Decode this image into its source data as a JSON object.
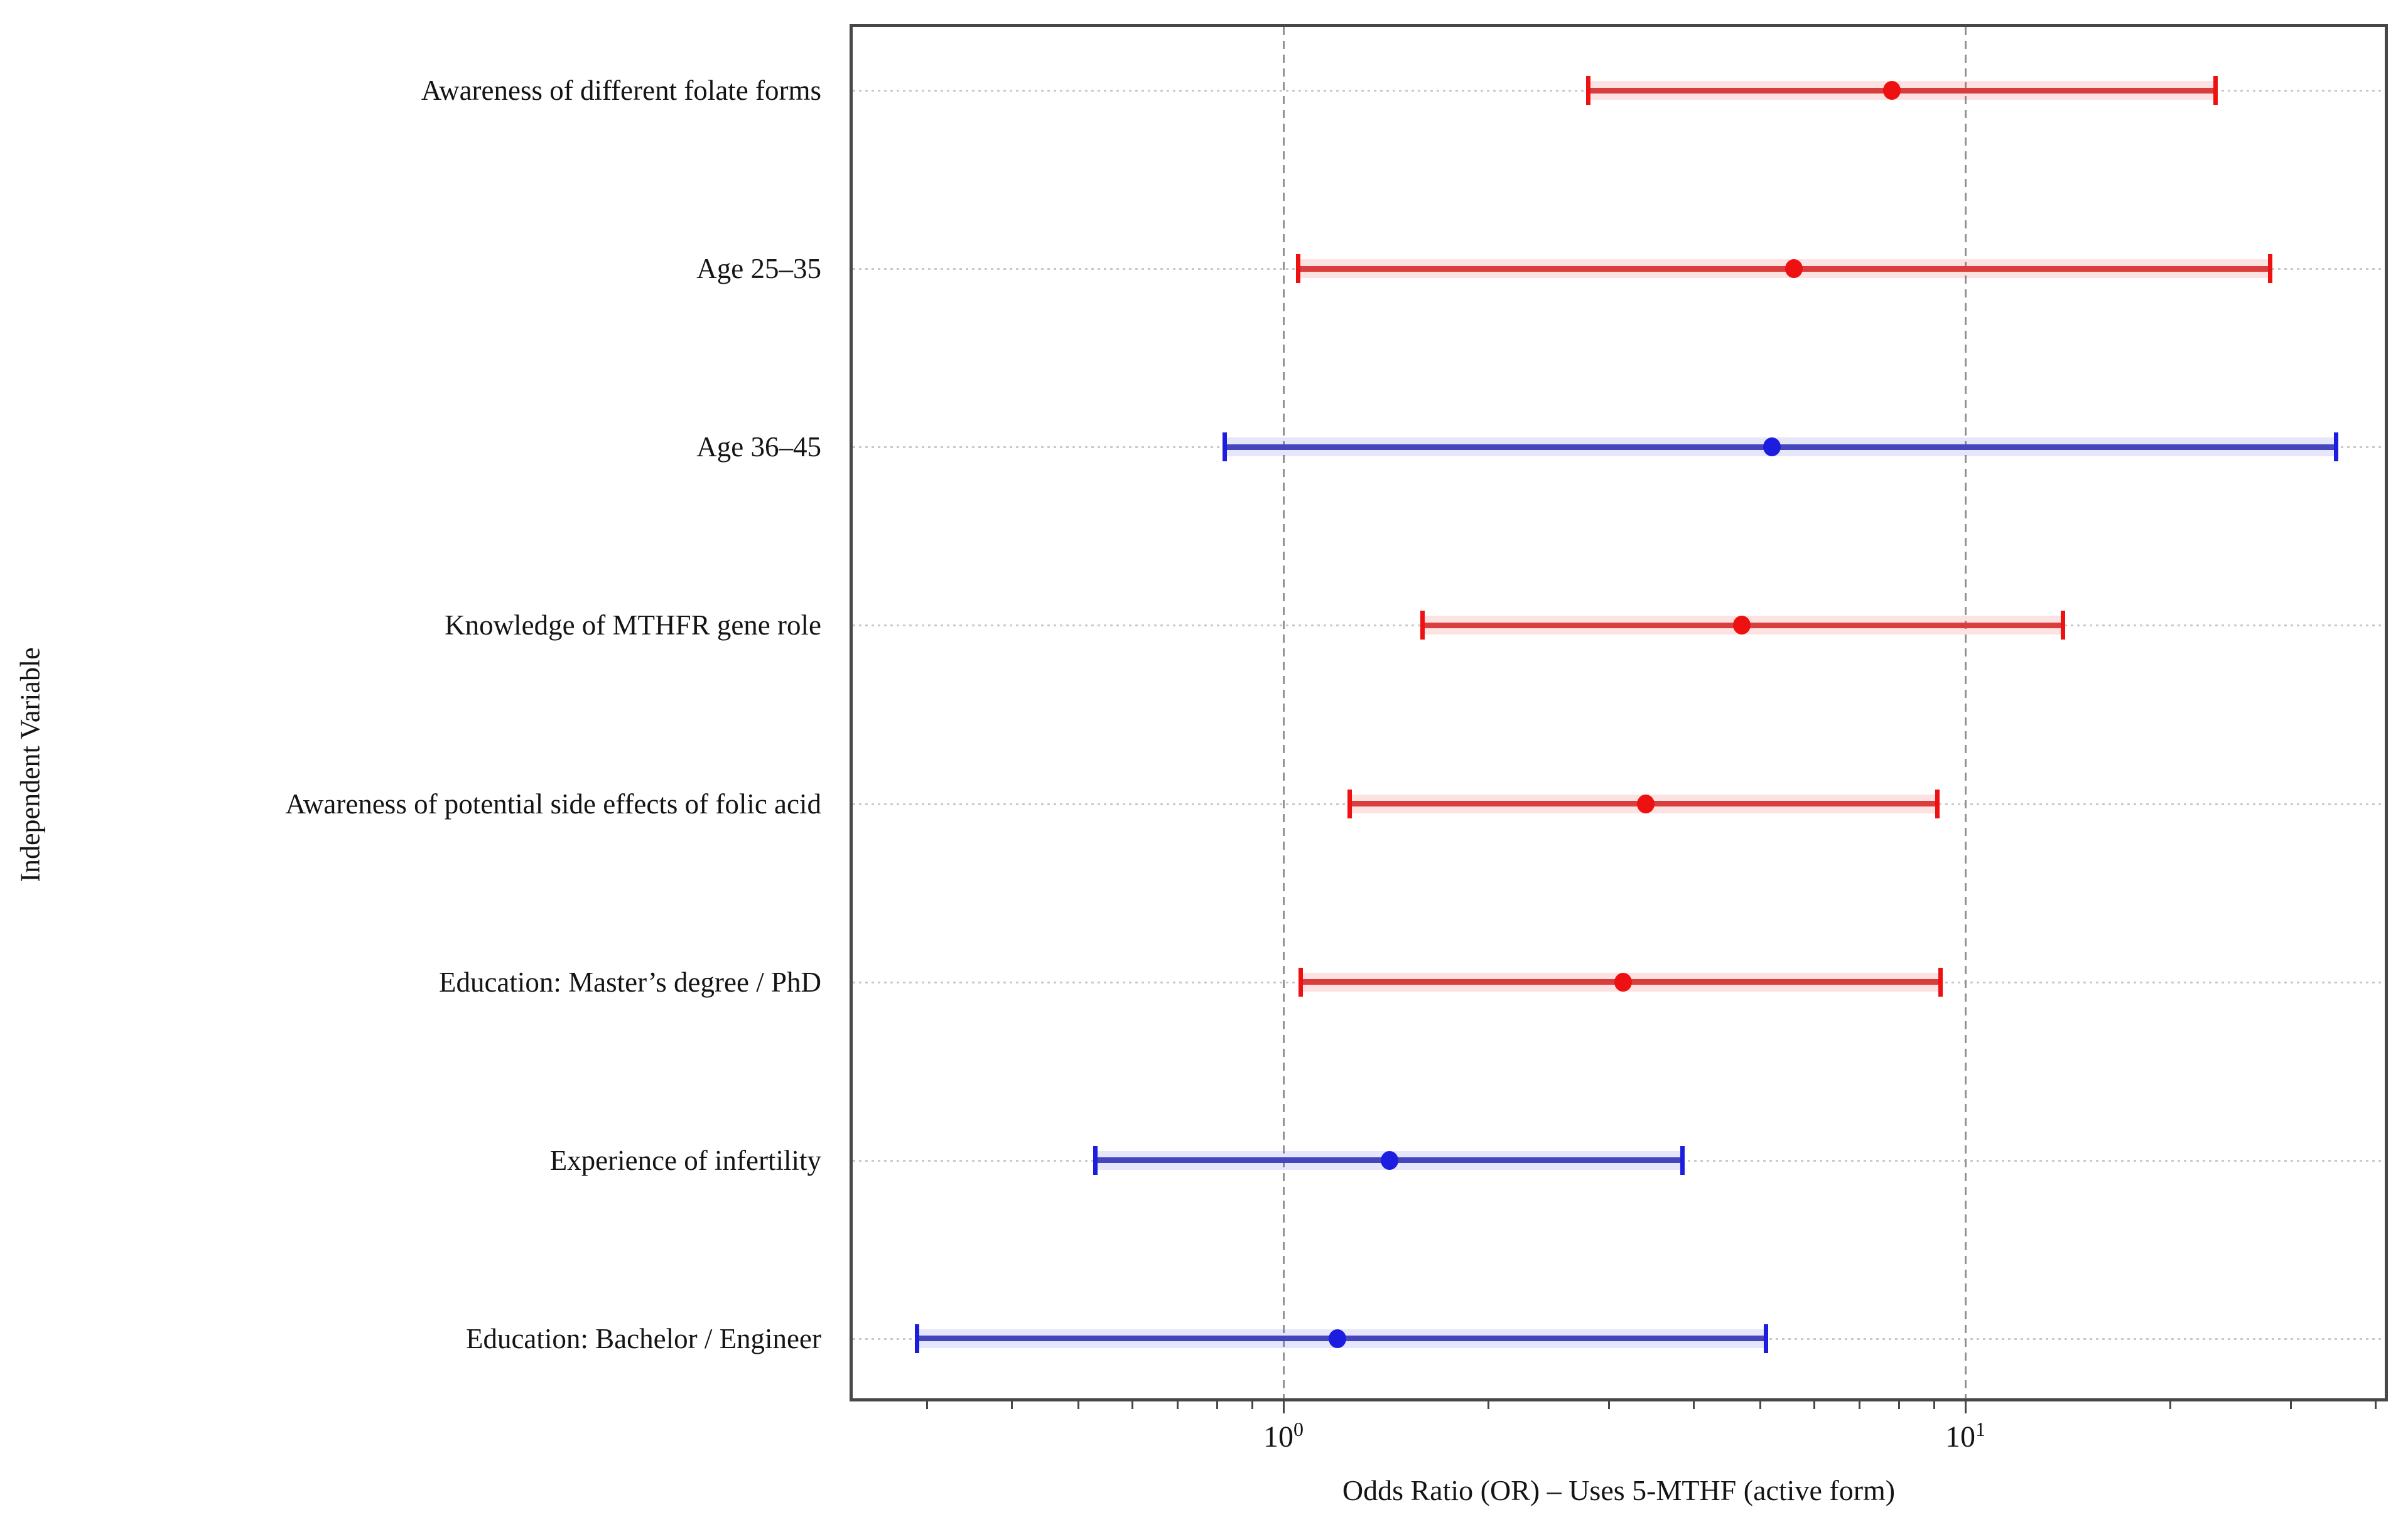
{
  "figure": {
    "xlabel": "Odds Ratio (OR) – Uses 5-MTHF (active form)",
    "ylabel": "Independent Variable"
  },
  "chart_data": {
    "type": "scatter",
    "subtype": "forest-plot-errorbar",
    "x_scale": "log10",
    "xlim": [
      0.23,
      42
    ],
    "grid": "horizontal-dotted",
    "reference_lines_x": [
      1,
      10
    ],
    "x_major_ticks": [
      {
        "value": 1,
        "base": "10",
        "exponent": "0"
      },
      {
        "value": 10,
        "base": "10",
        "exponent": "1"
      }
    ],
    "x_minor_ticks": [
      0.3,
      0.4,
      0.5,
      0.6,
      0.7,
      0.8,
      0.9,
      2,
      3,
      4,
      5,
      6,
      7,
      8,
      9,
      20,
      30,
      40
    ],
    "colors": {
      "significant_marker": "#ee1111",
      "significant_line": "#da3d3d",
      "significant_band": "rgba(238,34,34,0.13)",
      "nonsignificant_marker": "#1d1de0",
      "nonsignificant_line": "#4545bd",
      "nonsignificant_band": "rgba(60,60,220,0.13)",
      "frame": "#474747",
      "gridline": "#c9c9c9",
      "reference_dash": "#929292"
    },
    "rows": [
      {
        "label": "Awareness of different folate forms",
        "or": 7.8,
        "ci_low": 2.8,
        "ci_high": 23.3,
        "significant": true
      },
      {
        "label": "Age 25–35",
        "or": 5.6,
        "ci_low": 1.05,
        "ci_high": 28.0,
        "significant": true
      },
      {
        "label": "Age 36–45",
        "or": 5.2,
        "ci_low": 0.82,
        "ci_high": 35.0,
        "significant": false
      },
      {
        "label": "Knowledge of MTHFR gene role",
        "or": 4.7,
        "ci_low": 1.6,
        "ci_high": 13.9,
        "significant": true
      },
      {
        "label": "Awareness of potential side effects of folic acid",
        "or": 3.4,
        "ci_low": 1.25,
        "ci_high": 9.1,
        "significant": true
      },
      {
        "label": "Education: Master’s degree / PhD",
        "or": 3.15,
        "ci_low": 1.06,
        "ci_high": 9.2,
        "significant": true
      },
      {
        "label": "Experience of infertility",
        "or": 1.43,
        "ci_low": 0.53,
        "ci_high": 3.85,
        "significant": false
      },
      {
        "label": "Education: Bachelor / Engineer",
        "or": 1.2,
        "ci_low": 0.29,
        "ci_high": 5.1,
        "significant": false
      }
    ]
  }
}
